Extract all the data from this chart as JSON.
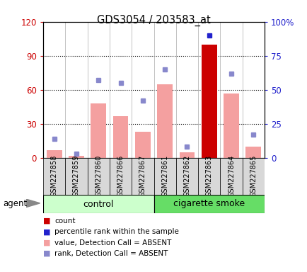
{
  "title": "GDS3054 / 203583_at",
  "samples": [
    "GSM227858",
    "GSM227859",
    "GSM227860",
    "GSM227866",
    "GSM227867",
    "GSM227861",
    "GSM227862",
    "GSM227863",
    "GSM227864",
    "GSM227865"
  ],
  "bar_values": [
    7,
    2,
    48,
    37,
    23,
    65,
    5,
    100,
    57,
    10
  ],
  "bar_colors": [
    "#f4a0a0",
    "#f4a0a0",
    "#f4a0a0",
    "#f4a0a0",
    "#f4a0a0",
    "#f4a0a0",
    "#f4a0a0",
    "#cc0000",
    "#f4a0a0",
    "#f4a0a0"
  ],
  "rank_dots": [
    14,
    3,
    57,
    55,
    42,
    65,
    8,
    90,
    62,
    17
  ],
  "rank_dot_colors": [
    "#8888cc",
    "#8888cc",
    "#8888cc",
    "#8888cc",
    "#8888cc",
    "#8888cc",
    "#8888cc",
    "#2222cc",
    "#8888cc",
    "#8888cc"
  ],
  "ylim_left": [
    0,
    120
  ],
  "ylim_right": [
    0,
    100
  ],
  "yticks_left": [
    0,
    30,
    60,
    90,
    120
  ],
  "yticks_left_labels": [
    "0",
    "30",
    "60",
    "90",
    "120"
  ],
  "yticks_right": [
    0,
    25,
    50,
    75,
    100
  ],
  "yticks_right_labels": [
    "0",
    "25",
    "50",
    "75",
    "100%"
  ],
  "left_tick_color": "#cc0000",
  "right_tick_color": "#2222cc",
  "grid_yticks": [
    30,
    60,
    90
  ],
  "ctrl_color": "#ccffcc",
  "smoke_color": "#66dd66",
  "legend_items": [
    {
      "label": "count",
      "color": "#cc0000"
    },
    {
      "label": "percentile rank within the sample",
      "color": "#2222cc"
    },
    {
      "label": "value, Detection Call = ABSENT",
      "color": "#f4a0a0"
    },
    {
      "label": "rank, Detection Call = ABSENT",
      "color": "#8888cc"
    }
  ]
}
